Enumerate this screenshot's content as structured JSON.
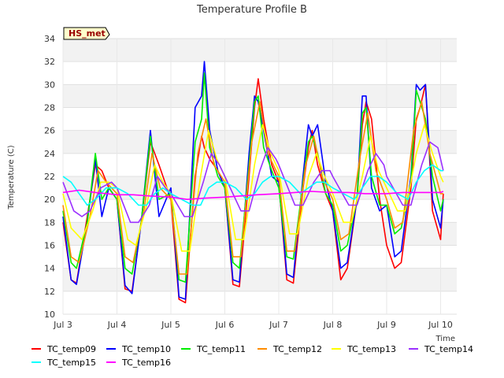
{
  "chart_data": {
    "type": "line",
    "title": "Temperature Profile B",
    "xlabel": "Time",
    "ylabel": "Temperature (C)",
    "badge": "HS_met",
    "ylim": [
      10,
      34
    ],
    "yticks": [
      10,
      12,
      14,
      16,
      18,
      20,
      22,
      24,
      26,
      28,
      30,
      32,
      34
    ],
    "xlim": [
      3.0,
      10.3
    ],
    "xticks": [
      3,
      4,
      5,
      6,
      7,
      8,
      9,
      10
    ],
    "xtick_labels": [
      "Jul 3",
      "Jul 4",
      "Jul 5",
      "Jul 6",
      "Jul 7",
      "Jul 8",
      "Jul 9",
      "Jul 10"
    ],
    "grid": true,
    "legend_position": "bottom",
    "series": [
      {
        "name": "TC_temp09",
        "color": "#ff0000",
        "x": [
          3.0,
          3.15,
          3.25,
          3.45,
          3.6,
          3.72,
          3.85,
          4.0,
          4.15,
          4.28,
          4.45,
          4.62,
          4.78,
          5.0,
          5.15,
          5.27,
          5.45,
          5.57,
          5.62,
          5.72,
          5.87,
          6.0,
          6.15,
          6.27,
          6.45,
          6.55,
          6.62,
          6.72,
          6.87,
          7.0,
          7.15,
          7.27,
          7.45,
          7.55,
          7.62,
          7.72,
          7.87,
          8.0,
          8.15,
          8.27,
          8.45,
          8.55,
          8.62,
          8.72,
          8.87,
          9.0,
          9.15,
          9.27,
          9.45,
          9.55,
          9.62,
          9.72,
          9.85,
          10.0,
          10.05
        ],
        "y": [
          18.0,
          13.0,
          12.7,
          18.5,
          23.0,
          22.5,
          21.0,
          20.0,
          12.2,
          12.0,
          18.0,
          25.0,
          23.0,
          20.0,
          11.3,
          11.0,
          22.0,
          25.5,
          24.5,
          23.5,
          22.5,
          21.0,
          12.6,
          12.4,
          22.0,
          28.0,
          30.5,
          27.0,
          23.0,
          21.5,
          13.0,
          12.7,
          21.0,
          24.5,
          26.0,
          23.0,
          20.5,
          19.0,
          13.0,
          14.0,
          20.0,
          26.5,
          28.5,
          27.0,
          20.0,
          16.0,
          14.0,
          14.5,
          21.0,
          27.0,
          28.0,
          30.0,
          19.0,
          16.5,
          20.5
        ]
      },
      {
        "name": "TC_temp10",
        "color": "#0000ff",
        "x": [
          3.0,
          3.15,
          3.25,
          3.45,
          3.6,
          3.72,
          3.85,
          4.0,
          4.15,
          4.28,
          4.45,
          4.62,
          4.78,
          5.0,
          5.15,
          5.27,
          5.45,
          5.57,
          5.62,
          5.72,
          5.87,
          6.0,
          6.15,
          6.27,
          6.45,
          6.55,
          6.62,
          6.72,
          6.87,
          7.0,
          7.15,
          7.27,
          7.45,
          7.55,
          7.62,
          7.72,
          7.87,
          8.0,
          8.15,
          8.27,
          8.45,
          8.55,
          8.62,
          8.72,
          8.87,
          9.0,
          9.15,
          9.27,
          9.45,
          9.55,
          9.62,
          9.72,
          9.85,
          10.0,
          10.05
        ],
        "y": [
          18.5,
          13.0,
          12.6,
          18.0,
          23.5,
          18.5,
          21.0,
          20.0,
          12.5,
          11.8,
          18.0,
          26.0,
          18.5,
          21.0,
          11.5,
          11.3,
          28.0,
          29.0,
          32.0,
          26.0,
          22.5,
          21.0,
          13.0,
          12.8,
          24.0,
          29.0,
          28.5,
          26.0,
          22.0,
          21.5,
          13.5,
          13.2,
          22.0,
          26.5,
          25.5,
          26.5,
          21.5,
          19.0,
          14.0,
          14.5,
          20.0,
          29.0,
          29.0,
          21.0,
          19.0,
          19.5,
          15.0,
          15.5,
          22.0,
          30.0,
          29.5,
          30.0,
          20.0,
          17.5,
          20.0
        ]
      },
      {
        "name": "TC_temp11",
        "color": "#00ee00",
        "x": [
          3.0,
          3.15,
          3.25,
          3.45,
          3.6,
          3.72,
          3.85,
          4.0,
          4.15,
          4.28,
          4.45,
          4.62,
          4.78,
          5.0,
          5.15,
          5.27,
          5.45,
          5.57,
          5.62,
          5.72,
          5.87,
          6.0,
          6.15,
          6.27,
          6.45,
          6.55,
          6.62,
          6.72,
          6.87,
          7.0,
          7.15,
          7.27,
          7.45,
          7.55,
          7.62,
          7.72,
          7.87,
          8.0,
          8.15,
          8.27,
          8.45,
          8.55,
          8.62,
          8.72,
          8.87,
          9.0,
          9.15,
          9.27,
          9.45,
          9.55,
          9.62,
          9.72,
          9.85,
          10.0,
          10.05
        ],
        "y": [
          19.0,
          14.5,
          14.0,
          18.0,
          24.0,
          20.0,
          21.0,
          20.0,
          14.0,
          13.5,
          18.0,
          25.5,
          20.0,
          20.5,
          13.0,
          12.8,
          25.0,
          27.0,
          31.0,
          24.5,
          22.0,
          21.0,
          14.5,
          14.0,
          23.0,
          28.5,
          29.0,
          24.5,
          22.5,
          21.0,
          15.0,
          14.8,
          21.5,
          25.0,
          25.5,
          24.0,
          20.5,
          19.5,
          15.5,
          16.0,
          20.0,
          27.5,
          28.0,
          22.0,
          19.5,
          19.5,
          17.0,
          17.5,
          21.5,
          29.5,
          28.5,
          27.0,
          22.0,
          19.0,
          20.0
        ]
      },
      {
        "name": "TC_temp12",
        "color": "#ff8c00",
        "x": [
          3.0,
          3.15,
          3.3,
          3.5,
          3.65,
          3.8,
          4.0,
          4.15,
          4.3,
          4.5,
          4.65,
          4.8,
          5.0,
          5.15,
          5.3,
          5.5,
          5.65,
          5.8,
          6.0,
          6.15,
          6.3,
          6.5,
          6.65,
          6.8,
          7.0,
          7.15,
          7.3,
          7.5,
          7.65,
          7.8,
          8.0,
          8.15,
          8.3,
          8.5,
          8.65,
          8.8,
          9.0,
          9.15,
          9.3,
          9.5,
          9.65,
          9.8,
          10.0,
          10.05
        ],
        "y": [
          19.5,
          15.0,
          14.5,
          18.5,
          22.5,
          21.5,
          20.5,
          15.0,
          14.5,
          19.0,
          24.0,
          21.0,
          20.0,
          13.5,
          13.5,
          24.0,
          27.0,
          23.0,
          21.5,
          15.0,
          15.0,
          25.0,
          28.5,
          24.0,
          22.0,
          15.5,
          15.5,
          23.0,
          25.5,
          22.0,
          20.0,
          16.5,
          17.0,
          23.5,
          27.5,
          22.5,
          20.0,
          17.5,
          18.0,
          26.0,
          28.5,
          24.0,
          20.5,
          20.5
        ]
      },
      {
        "name": "TC_temp13",
        "color": "#ffff00",
        "x": [
          3.0,
          3.15,
          3.35,
          3.55,
          3.7,
          3.85,
          4.0,
          4.2,
          4.35,
          4.55,
          4.7,
          4.85,
          5.0,
          5.2,
          5.35,
          5.55,
          5.7,
          5.85,
          6.0,
          6.2,
          6.35,
          6.55,
          6.7,
          6.85,
          7.0,
          7.2,
          7.35,
          7.55,
          7.7,
          7.85,
          8.0,
          8.2,
          8.35,
          8.55,
          8.7,
          8.85,
          9.0,
          9.2,
          9.35,
          9.55,
          9.7,
          9.85,
          10.0,
          10.05
        ],
        "y": [
          20.5,
          17.5,
          16.5,
          19.0,
          21.5,
          21.5,
          21.0,
          16.5,
          16.0,
          19.5,
          23.0,
          21.5,
          20.5,
          15.5,
          15.5,
          22.0,
          26.0,
          23.5,
          22.0,
          16.5,
          16.5,
          23.0,
          26.5,
          24.0,
          22.5,
          17.0,
          17.0,
          22.0,
          24.0,
          22.0,
          20.5,
          18.0,
          18.0,
          22.0,
          25.5,
          22.5,
          21.0,
          19.0,
          19.0,
          24.0,
          26.5,
          24.0,
          22.0,
          21.5
        ]
      },
      {
        "name": "TC_temp14",
        "color": "#9b30ff",
        "x": [
          3.0,
          3.2,
          3.35,
          3.5,
          3.7,
          3.9,
          4.0,
          4.25,
          4.4,
          4.6,
          4.75,
          4.9,
          5.0,
          5.25,
          5.4,
          5.6,
          5.75,
          5.9,
          6.0,
          6.3,
          6.45,
          6.65,
          6.8,
          6.95,
          7.0,
          7.3,
          7.45,
          7.65,
          7.8,
          7.95,
          8.0,
          8.3,
          8.45,
          8.65,
          8.8,
          8.95,
          9.0,
          9.3,
          9.45,
          9.65,
          9.8,
          9.95,
          10.0,
          10.05
        ],
        "y": [
          21.5,
          19.0,
          18.5,
          19.0,
          21.0,
          21.5,
          21.0,
          18.0,
          18.0,
          19.5,
          22.0,
          21.0,
          20.5,
          18.5,
          18.5,
          21.5,
          24.0,
          23.0,
          22.0,
          19.0,
          19.0,
          22.5,
          24.5,
          23.5,
          23.0,
          19.5,
          19.5,
          21.5,
          22.5,
          22.5,
          22.0,
          19.5,
          19.5,
          22.5,
          24.0,
          23.0,
          22.0,
          19.5,
          19.5,
          23.0,
          25.0,
          24.5,
          23.5,
          22.5
        ]
      },
      {
        "name": "TC_temp15",
        "color": "#00ffff",
        "x": [
          3.0,
          3.15,
          3.3,
          3.45,
          3.6,
          3.8,
          4.0,
          4.2,
          4.4,
          4.55,
          4.7,
          4.85,
          5.0,
          5.2,
          5.4,
          5.55,
          5.7,
          5.85,
          6.0,
          6.2,
          6.4,
          6.55,
          6.7,
          6.85,
          7.0,
          7.2,
          7.4,
          7.55,
          7.7,
          7.85,
          8.0,
          8.2,
          8.4,
          8.55,
          8.7,
          8.85,
          9.0,
          9.2,
          9.4,
          9.55,
          9.7,
          9.85,
          10.0,
          10.05
        ],
        "y": [
          22.0,
          21.5,
          20.5,
          19.5,
          20.0,
          21.0,
          21.0,
          20.5,
          19.5,
          19.5,
          20.5,
          21.0,
          20.5,
          20.0,
          19.5,
          19.5,
          21.0,
          21.5,
          21.5,
          21.0,
          20.0,
          20.5,
          21.5,
          22.0,
          22.0,
          21.5,
          20.5,
          21.0,
          21.5,
          21.5,
          21.0,
          20.5,
          20.0,
          21.0,
          22.0,
          22.0,
          21.5,
          20.5,
          20.0,
          21.5,
          22.5,
          23.0,
          22.5,
          22.5
        ]
      },
      {
        "name": "TC_temp16",
        "color": "#ff00ff",
        "x": [
          3.0,
          3.3,
          3.6,
          4.0,
          4.3,
          4.6,
          5.0,
          5.3,
          5.6,
          6.0,
          6.3,
          6.6,
          7.0,
          7.3,
          7.6,
          8.0,
          8.3,
          8.6,
          9.0,
          9.3,
          9.6,
          10.0,
          10.05
        ],
        "y": [
          20.6,
          20.8,
          20.6,
          20.4,
          20.4,
          20.3,
          20.2,
          20.0,
          20.1,
          20.2,
          20.3,
          20.4,
          20.5,
          20.6,
          20.7,
          20.6,
          20.6,
          20.5,
          20.5,
          20.6,
          20.6,
          20.6,
          20.7
        ]
      }
    ]
  }
}
